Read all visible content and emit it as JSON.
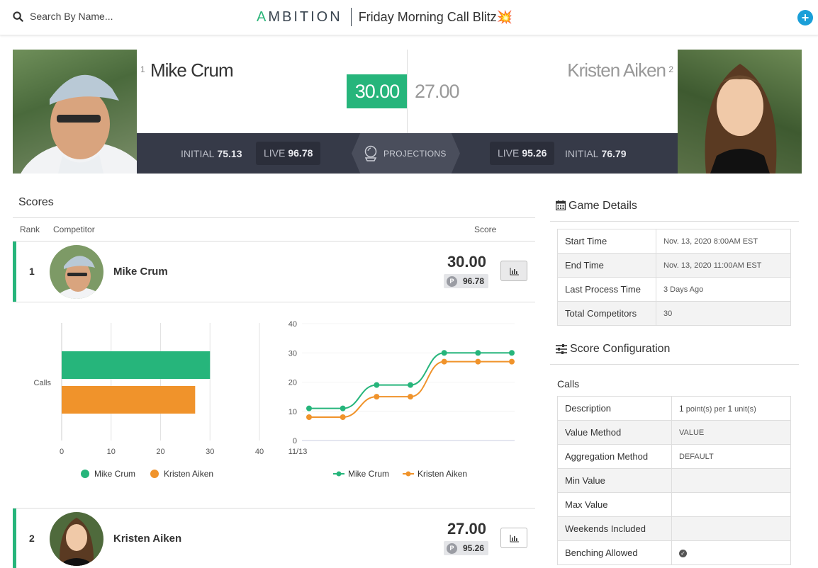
{
  "topbar": {
    "search_placeholder": "Search By Name...",
    "logo_a": "A",
    "logo_rest": "MBITION",
    "game_title": "Friday Morning Call Blitz💥",
    "add_label": "+"
  },
  "head_to_head": {
    "left": {
      "rank": "1",
      "name": "Mike Crum",
      "score": "30.00",
      "initial_label": "INITIAL",
      "initial_value": "75.13",
      "live_label": "LIVE",
      "live_value": "96.78"
    },
    "right": {
      "rank": "2",
      "name": "Kristen Aiken",
      "score": "27.00",
      "initial_label": "INITIAL",
      "initial_value": "76.79",
      "live_label": "LIVE",
      "live_value": "95.26"
    },
    "projections_label": "PROJECTIONS"
  },
  "scores": {
    "title": "Scores",
    "columns": {
      "rank": "Rank",
      "competitor": "Competitor",
      "score": "Score"
    },
    "rows": [
      {
        "rank": "1",
        "name": "Mike Crum",
        "score": "30.00",
        "projection_badge": "P",
        "projection": "96.78"
      },
      {
        "rank": "2",
        "name": "Kristen Aiken",
        "score": "27.00",
        "projection_badge": "P",
        "projection": "95.26"
      }
    ]
  },
  "chart_data": [
    {
      "type": "bar",
      "orientation": "horizontal",
      "categories": [
        "Calls"
      ],
      "series": [
        {
          "name": "Mike Crum",
          "values": [
            30
          ],
          "color": "#26b57b"
        },
        {
          "name": "Kristen Aiken",
          "values": [
            27
          ],
          "color": "#f0932b"
        }
      ],
      "xlim": [
        0,
        40
      ],
      "xticks": [
        "0",
        "10",
        "20",
        "30",
        "40"
      ],
      "grid": true,
      "legend": "bottom"
    },
    {
      "type": "line",
      "x_label_first": "11/13",
      "series": [
        {
          "name": "Mike Crum",
          "values": [
            11,
            11,
            19,
            19,
            30,
            30,
            30
          ],
          "color": "#26b57b"
        },
        {
          "name": "Kristen Aiken",
          "values": [
            8,
            8,
            15,
            15,
            27,
            27,
            27
          ],
          "color": "#f0932b"
        }
      ],
      "ylim": [
        0,
        40
      ],
      "yticks": [
        "0",
        "10",
        "20",
        "30",
        "40"
      ],
      "legend": "bottom"
    }
  ],
  "game_details": {
    "title": "Game Details",
    "rows": [
      {
        "key": "Start Time",
        "value": "Nov. 13, 2020 8:00AM EST"
      },
      {
        "key": "End Time",
        "value": "Nov. 13, 2020 11:00AM EST"
      },
      {
        "key": "Last Process Time",
        "value": "3 Days Ago"
      },
      {
        "key": "Total Competitors",
        "value": "30"
      }
    ]
  },
  "score_config": {
    "title": "Score Configuration",
    "subtitle": "Calls",
    "description": {
      "key": "Description",
      "points": "1",
      "points_text": " point(s) per ",
      "units": "1",
      "units_text": " unit(s)"
    },
    "rows": [
      {
        "key": "Value Method",
        "value": "VALUE"
      },
      {
        "key": "Aggregation Method",
        "value": "DEFAULT"
      },
      {
        "key": "Min Value",
        "value": ""
      },
      {
        "key": "Max Value",
        "value": ""
      },
      {
        "key": "Weekends Included",
        "value": ""
      }
    ],
    "benching": {
      "key": "Benching Allowed",
      "checked": true
    }
  }
}
